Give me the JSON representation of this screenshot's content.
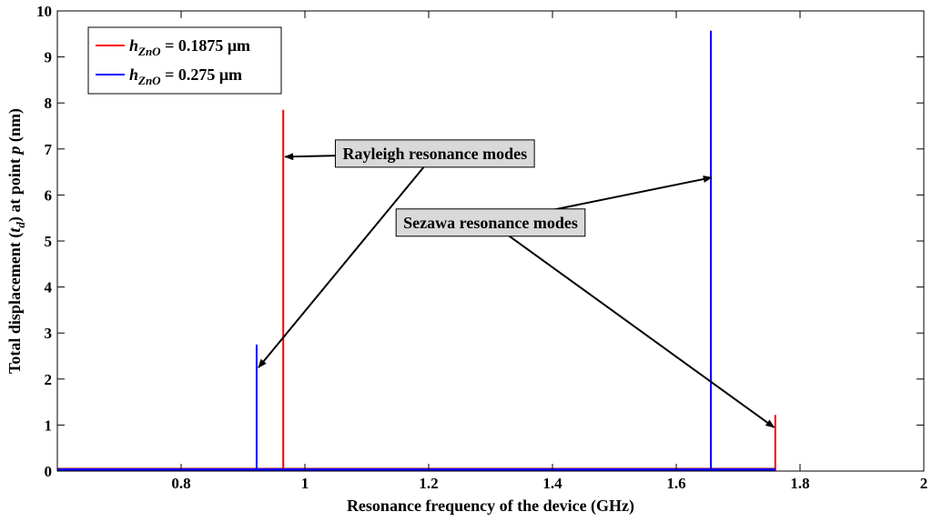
{
  "chart_data": {
    "type": "line",
    "title": "",
    "xlabel": "Resonance frequency of the device (GHz)",
    "ylabel_parts": [
      "Total displacement (",
      "t",
      "d",
      ") at point ",
      "p",
      " (nm)"
    ],
    "xlim": [
      0.6,
      2.0
    ],
    "ylim": [
      0,
      10
    ],
    "x_ticks": [
      0.8,
      1,
      1.2,
      1.4,
      1.6,
      1.8,
      2
    ],
    "x_tick_labels": [
      "0.8",
      "1",
      "1.2",
      "1.4",
      "1.6",
      "1.8",
      "2"
    ],
    "y_ticks": [
      0,
      1,
      2,
      3,
      4,
      5,
      6,
      7,
      8,
      9,
      10
    ],
    "y_tick_labels": [
      "0",
      "1",
      "2",
      "3",
      "4",
      "5",
      "6",
      "7",
      "8",
      "9",
      "10"
    ],
    "grid": false,
    "legend_position": "top-left",
    "series": [
      {
        "name_parts": [
          "h",
          "ZnO",
          " = 0.1875 μm"
        ],
        "color": "#ff0000",
        "baseline": 0.04,
        "baseline_range": [
          0.6,
          1.76
        ],
        "peaks": [
          {
            "x": 0.965,
            "y": 7.85
          },
          {
            "x": 1.76,
            "y": 1.22
          }
        ]
      },
      {
        "name_parts": [
          "h",
          "ZnO",
          " = 0.275 μm"
        ],
        "color": "#0000ff",
        "baseline": 0.03,
        "baseline_range": [
          0.6,
          1.76
        ],
        "peaks": [
          {
            "x": 0.922,
            "y": 2.75
          },
          {
            "x": 1.656,
            "y": 9.57
          }
        ]
      }
    ],
    "annotations": [
      {
        "text": "Rayleigh resonance modes",
        "box_anchor": {
          "x": 1.21,
          "y": 6.9
        },
        "arrow_targets": [
          {
            "x": 0.968,
            "y": 6.83
          },
          {
            "x": 0.925,
            "y": 2.25
          }
        ]
      },
      {
        "text": "Sezawa resonance modes",
        "box_anchor": {
          "x": 1.3,
          "y": 5.4
        },
        "arrow_targets": [
          {
            "x": 1.657,
            "y": 6.38
          },
          {
            "x": 1.758,
            "y": 0.95
          }
        ]
      }
    ]
  }
}
